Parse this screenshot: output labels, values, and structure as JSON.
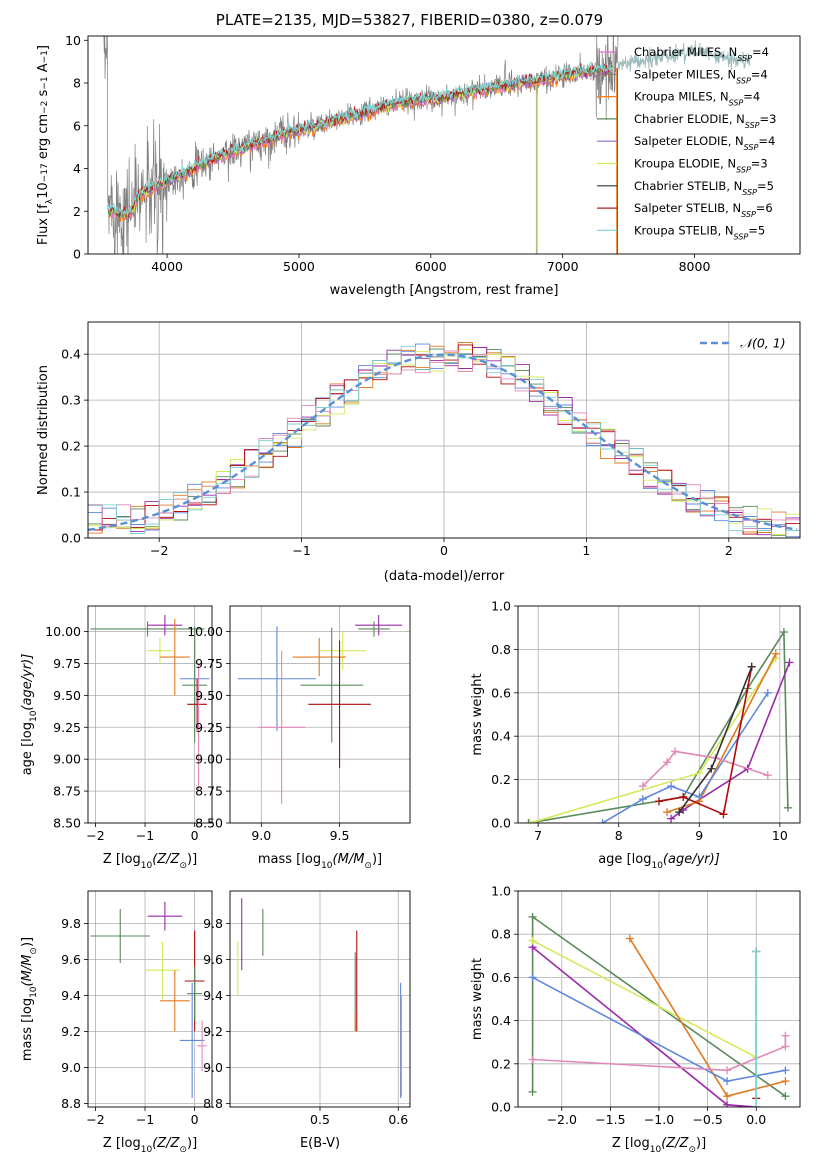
{
  "figure": {
    "title": "PLATE=2135, MJD=53827, FIBERID=0380, z=0.079"
  },
  "series_colors": {
    "chabrier_miles": "#e377c2",
    "salpeter_miles": "#7f7f7f",
    "kroupa_miles": "#ff7f0e",
    "chabrier_elodie": "#5a8a5a",
    "salpeter_elodie": "#9467bd",
    "kroupa_elodie": "#d4ea5a",
    "chabrier_stelib": "#333333",
    "salpeter_stelib": "#b22222",
    "kroupa_stelib": "#7fd8d8",
    "gaussian": "#5b8fd8",
    "blue_fit": "#6088dd",
    "green_fit": "#5a8a5a",
    "purple_fit": "#9a2aa8",
    "yellow_fit": "#d4ea5a",
    "orange_fit": "#e07a20",
    "pink_fit": "#e088b8",
    "red_fit": "#b00a0a",
    "teal_fit": "#7fd0d0"
  },
  "chart_data": [
    {
      "id": "spectrum",
      "type": "line",
      "xlabel": "wavelength [Angstrom, rest frame]",
      "ylabel_parts": [
        "Flux [f",
        "λ",
        "10",
        "−17",
        " erg cm",
        "−2",
        " s",
        "−1",
        " A",
        "−1",
        "]"
      ],
      "xlim": [
        3400,
        8800
      ],
      "ylim": [
        0,
        10.2
      ],
      "xticks": [
        4000,
        5000,
        6000,
        7000,
        8000
      ],
      "yticks": [
        0,
        2,
        4,
        6,
        8,
        10
      ],
      "data_x": [
        3550,
        3700,
        3800,
        4000,
        4200,
        4400,
        4600,
        4800,
        4900,
        5100,
        5300,
        5500,
        5700,
        5900,
        6100,
        6300,
        6500,
        6700,
        6900,
        7100,
        7300,
        7400
      ],
      "data_y": [
        2.3,
        2.0,
        2.8,
        3.4,
        4.0,
        4.6,
        5.0,
        5.4,
        5.7,
        5.9,
        6.3,
        6.6,
        7.0,
        7.2,
        7.3,
        7.6,
        7.8,
        8.0,
        8.2,
        8.5,
        8.6,
        8.7
      ],
      "data_ext_x": [
        7400,
        7600,
        7800,
        8000,
        8200,
        8400
      ],
      "data_ext_y": [
        8.8,
        9.0,
        9.3,
        9.5,
        9.2,
        9.0
      ],
      "legend": [
        {
          "key": "chabrier_miles",
          "label": "Chabrier MILES, N",
          "sub": "SSP",
          "suffix": "=4"
        },
        {
          "key": "salpeter_miles",
          "label": "Salpeter MILES, N",
          "sub": "SSP",
          "suffix": "=4"
        },
        {
          "key": "kroupa_miles",
          "label": "Kroupa MILES, N",
          "sub": "SSP",
          "suffix": "=4"
        },
        {
          "key": "chabrier_elodie",
          "label": "Chabrier ELODIE, N",
          "sub": "SSP",
          "suffix": "=3"
        },
        {
          "key": "salpeter_elodie",
          "label": "Salpeter ELODIE, N",
          "sub": "SSP",
          "suffix": "=4"
        },
        {
          "key": "kroupa_elodie",
          "label": "Kroupa ELODIE, N",
          "sub": "SSP",
          "suffix": "=3"
        },
        {
          "key": "chabrier_stelib",
          "label": "Chabrier STELIB, N",
          "sub": "SSP",
          "suffix": "=5"
        },
        {
          "key": "salpeter_stelib",
          "label": "Salpeter STELIB, N",
          "sub": "SSP",
          "suffix": "=6"
        },
        {
          "key": "kroupa_stelib",
          "label": "Kroupa STELIB, N",
          "sub": "SSP",
          "suffix": "=5"
        }
      ]
    },
    {
      "id": "residuals",
      "type": "histogram",
      "xlabel": "(data-model)/error",
      "ylabel": "Normed distribution",
      "xlim": [
        -2.5,
        2.5
      ],
      "ylim": [
        0,
        0.47
      ],
      "xticks": [
        -2,
        -1,
        0,
        1,
        2
      ],
      "yticks": [
        0.0,
        0.1,
        0.2,
        0.3,
        0.4
      ],
      "legend_label": "𝒩(0, 1)",
      "bin_width": 0.1
    },
    {
      "id": "age_vs_Z",
      "type": "errorbar",
      "xlabel_parts": [
        "Z [log",
        "10",
        "(Z/Z",
        "⊙",
        ")]"
      ],
      "ylabel_parts": [
        "age  [log",
        "10",
        "(age/yr)]"
      ],
      "xlim": [
        -2.15,
        0.35
      ],
      "ylim": [
        8.5,
        10.2
      ],
      "xticks": [
        -2,
        -1,
        0
      ],
      "yticks": [
        8.5,
        8.75,
        9.0,
        9.25,
        9.5,
        9.75,
        10.0
      ],
      "points": [
        {
          "c": "green_fit",
          "x": -0.95,
          "xe": 1.15,
          "y": 10.02,
          "ye": 0.06
        },
        {
          "c": "purple_fit",
          "x": -0.6,
          "xe": 0.35,
          "y": 10.05,
          "ye": 0.08
        },
        {
          "c": "yellow_fit",
          "x": -0.7,
          "xe": 0.25,
          "y": 9.85,
          "ye": 0.1
        },
        {
          "c": "orange_fit",
          "x": -0.4,
          "xe": 0.3,
          "y": 9.8,
          "ye": 0.3
        },
        {
          "c": "blue_fit",
          "x": 0.0,
          "xe": 0.3,
          "y": 9.63,
          "ye": 0.41
        },
        {
          "c": "green_fit",
          "x": 0.0,
          "xe": 0.25,
          "y": 9.58,
          "ye": 0.45
        },
        {
          "c": "red_fit",
          "x": 0.05,
          "xe": 0.2,
          "y": 9.43,
          "ye": 0.2
        },
        {
          "c": "pink_fit",
          "x": 0.08,
          "xe": 0.1,
          "y": 9.25,
          "ye": 0.5
        }
      ]
    },
    {
      "id": "age_vs_mass",
      "type": "errorbar",
      "xlabel_parts": [
        "mass [log",
        "10",
        "(M/M",
        "⊙",
        ")]"
      ],
      "xlim": [
        8.8,
        9.95
      ],
      "ylim": [
        8.5,
        10.2
      ],
      "xticks": [
        9.0,
        9.5
      ],
      "yticks": [
        8.5,
        8.75,
        9.0,
        9.25,
        9.5,
        9.75,
        10.0
      ],
      "points": [
        {
          "c": "purple_fit",
          "x": 9.75,
          "xe": 0.15,
          "y": 10.05,
          "ye": 0.08
        },
        {
          "c": "green_fit",
          "x": 9.72,
          "xe": 0.1,
          "y": 10.02,
          "ye": 0.06
        },
        {
          "c": "yellow_fit",
          "x": 9.52,
          "xe": 0.15,
          "y": 9.85,
          "ye": 0.15
        },
        {
          "c": "orange_fit",
          "x": 9.37,
          "xe": 0.17,
          "y": 9.8,
          "ye": 0.15
        },
        {
          "c": "blue_fit",
          "x": 9.1,
          "xe": 0.25,
          "y": 9.63,
          "ye": 0.41
        },
        {
          "c": "green_fit",
          "x": 9.45,
          "xe": 0.2,
          "y": 9.58,
          "ye": 0.45
        },
        {
          "c": "red_fit",
          "x": 9.5,
          "xe": 0.2,
          "y": 9.43,
          "ye": 0.5
        },
        {
          "c": "pink_fit",
          "x": 9.13,
          "xe": 0.15,
          "y": 9.25,
          "ye": 0.6
        }
      ]
    },
    {
      "id": "weight_vs_age",
      "type": "line",
      "xlabel_parts": [
        "age  [log",
        "10",
        "(age/yr)]"
      ],
      "ylabel": "mass weight",
      "xlim": [
        6.75,
        10.25
      ],
      "ylim": [
        0,
        1.0
      ],
      "xticks": [
        7,
        8,
        9,
        10
      ],
      "yticks": [
        0.0,
        0.2,
        0.4,
        0.6,
        0.8,
        1.0
      ],
      "series": [
        {
          "c": "green_fit",
          "x": [
            6.88,
            8.8,
            9.6,
            10.05,
            10.1
          ],
          "y": [
            0.0,
            0.12,
            0.62,
            0.88,
            0.07
          ]
        },
        {
          "c": "purple_fit",
          "x": [
            8.65,
            8.8,
            9.6,
            10.12
          ],
          "y": [
            0.02,
            0.06,
            0.25,
            0.74
          ]
        },
        {
          "c": "yellow_fit",
          "x": [
            6.9,
            9.0,
            9.95
          ],
          "y": [
            0.0,
            0.23,
            0.76
          ]
        },
        {
          "c": "orange_fit",
          "x": [
            8.6,
            9.0,
            9.95
          ],
          "y": [
            0.05,
            0.1,
            0.78
          ]
        },
        {
          "c": "blue_fit",
          "x": [
            7.8,
            8.3,
            8.65,
            9.0,
            9.85
          ],
          "y": [
            0.0,
            0.11,
            0.17,
            0.12,
            0.6
          ]
        },
        {
          "c": "pink_fit",
          "x": [
            8.3,
            8.6,
            8.7,
            9.2,
            9.85
          ],
          "y": [
            0.17,
            0.28,
            0.33,
            0.3,
            0.22
          ]
        },
        {
          "c": "red_fit",
          "x": [
            8.5,
            8.8,
            9.3,
            9.65
          ],
          "y": [
            0.1,
            0.12,
            0.04,
            0.72
          ]
        },
        {
          "c": "chabrier_stelib",
          "x": [
            8.75,
            9.15,
            9.65
          ],
          "y": [
            0.05,
            0.25,
            0.72
          ]
        }
      ]
    },
    {
      "id": "mass_vs_Z",
      "type": "errorbar",
      "xlabel_parts": [
        "Z [log",
        "10",
        "(Z/Z",
        "⊙",
        ")]"
      ],
      "ylabel_parts": [
        "mass [log",
        "10",
        "(M/M",
        "⊙",
        ")]"
      ],
      "xlim": [
        -2.15,
        0.35
      ],
      "ylim": [
        8.78,
        9.98
      ],
      "xticks": [
        -2,
        -1,
        0
      ],
      "yticks": [
        8.8,
        9.0,
        9.2,
        9.4,
        9.6,
        9.8
      ],
      "points": [
        {
          "c": "purple_fit",
          "x": -0.6,
          "xe": 0.35,
          "y": 9.84,
          "ye": 0.08
        },
        {
          "c": "green_fit",
          "x": -1.5,
          "xe": 0.6,
          "y": 9.73,
          "ye": 0.15
        },
        {
          "c": "yellow_fit",
          "x": -0.65,
          "xe": 0.35,
          "y": 9.54,
          "ye": 0.16
        },
        {
          "c": "orange_fit",
          "x": -0.4,
          "xe": 0.3,
          "y": 9.37,
          "ye": 0.17
        },
        {
          "c": "red_fit",
          "x": 0.0,
          "xe": 0.2,
          "y": 9.48,
          "ye": 0.28
        },
        {
          "c": "green_fit",
          "x": 0.0,
          "xe": 0.15,
          "y": 9.41,
          "ye": 0.15
        },
        {
          "c": "blue_fit",
          "x": -0.05,
          "xe": 0.25,
          "y": 9.15,
          "ye": 0.32
        },
        {
          "c": "pink_fit",
          "x": 0.15,
          "xe": 0.1,
          "y": 9.12,
          "ye": 0.14
        }
      ]
    },
    {
      "id": "mass_vs_ebv",
      "type": "errorbar",
      "xlabel": "E(B-V)",
      "xlim": [
        0.385,
        0.615
      ],
      "ylim": [
        8.78,
        9.98
      ],
      "xticks": [
        0.5,
        0.6
      ],
      "yticks": [
        8.8,
        9.0,
        9.2,
        9.4,
        9.6,
        9.8
      ],
      "points": [
        {
          "c": "purple_fit",
          "x": 0.4,
          "xe": 0.0,
          "y": 9.74,
          "ye": 0.2
        },
        {
          "c": "green_fit",
          "x": 0.427,
          "xe": 0.0,
          "y": 9.75,
          "ye": 0.13
        },
        {
          "c": "yellow_fit",
          "x": 0.395,
          "xe": 0.0,
          "y": 9.55,
          "ye": 0.15
        },
        {
          "c": "red_fit",
          "x": 0.547,
          "xe": 0.0,
          "y": 9.48,
          "ye": 0.28
        },
        {
          "c": "green_fit",
          "x": 0.545,
          "xe": 0.0,
          "y": 9.42,
          "ye": 0.22
        },
        {
          "c": "orange_fit",
          "x": 0.545,
          "xe": 0.0,
          "y": 9.25,
          "ye": 0.05
        },
        {
          "c": "blue_fit",
          "x": 0.603,
          "xe": 0.0,
          "y": 9.15,
          "ye": 0.32
        },
        {
          "c": "pink_fit",
          "x": 0.604,
          "xe": 0.0,
          "y": 9.12,
          "ye": 0.28
        }
      ]
    },
    {
      "id": "weight_vs_Z",
      "type": "line",
      "xlabel_parts": [
        "Z [log",
        "10",
        "(Z/Z",
        "⊙",
        ")]"
      ],
      "ylabel": "mass weight",
      "xlim": [
        -2.45,
        0.45
      ],
      "ylim": [
        0,
        1.0
      ],
      "xticks": [
        -2.0,
        -1.5,
        -1.0,
        -0.5,
        0.0
      ],
      "yticks": [
        0.0,
        0.2,
        0.4,
        0.6,
        0.8,
        1.0
      ],
      "series": [
        {
          "c": "green_fit",
          "x": [
            -2.3,
            -2.3,
            0.3
          ],
          "y": [
            0.07,
            0.88,
            0.05
          ]
        },
        {
          "c": "purple_fit",
          "x": [
            -2.3,
            -0.3,
            0.0
          ],
          "y": [
            0.74,
            0.01,
            0.0
          ]
        },
        {
          "c": "yellow_fit",
          "x": [
            -2.3,
            0.0
          ],
          "y": [
            0.77,
            0.23
          ]
        },
        {
          "c": "orange_fit",
          "x": [
            -1.3,
            -0.3,
            0.3
          ],
          "y": [
            0.78,
            0.05,
            0.12
          ]
        },
        {
          "c": "blue_fit",
          "x": [
            -2.3,
            -0.3,
            0.3
          ],
          "y": [
            0.6,
            0.12,
            0.17
          ]
        },
        {
          "c": "pink_fit",
          "x": [
            -2.3,
            -0.3,
            0.3,
            0.3
          ],
          "y": [
            0.22,
            0.17,
            0.28,
            0.33
          ]
        },
        {
          "c": "red_fit",
          "x": [
            0.0,
            0.0
          ],
          "y": [
            0.04,
            0.72
          ]
        },
        {
          "c": "teal_fit",
          "x": [
            0.0,
            0.0
          ],
          "y": [
            0.0,
            0.72
          ]
        }
      ]
    }
  ]
}
